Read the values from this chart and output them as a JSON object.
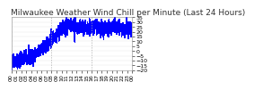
{
  "title": "Milwaukee Weather Wind Chill per Minute (Last 24 Hours)",
  "line_color": "#0000ff",
  "bg_color": "#ffffff",
  "plot_bg_color": "#ffffff",
  "grid_color": "#cccccc",
  "ylim": [
    -20,
    35
  ],
  "yticks": [
    -20,
    -15,
    -10,
    -5,
    0,
    5,
    10,
    15,
    20,
    25,
    30,
    35
  ],
  "num_points": 1440,
  "noise_scale": 3.5,
  "title_fontsize": 6.5,
  "tick_fontsize": 4.5,
  "line_width": 0.6,
  "vline_positions": [
    480,
    960
  ],
  "vline_color": "#aaaaaa",
  "vline_style": "dashed"
}
